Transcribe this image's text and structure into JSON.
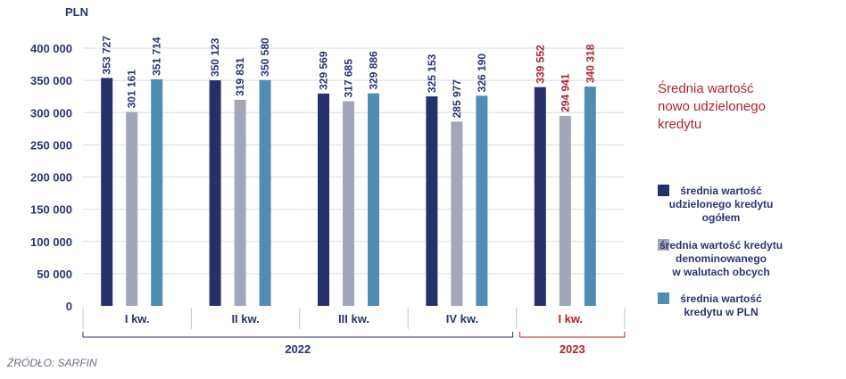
{
  "chart_data": {
    "type": "bar",
    "unit_label": "PLN",
    "ylim": [
      0,
      400000
    ],
    "yticks": [
      "0",
      "50 000",
      "100 000",
      "150 000",
      "200 000",
      "250 000",
      "300 000",
      "350 000",
      "400 000"
    ],
    "grid": true,
    "categories": [
      "I kw.",
      "II kw.",
      "III kw.",
      "IV kw.",
      "I kw."
    ],
    "years": [
      {
        "label": "2022",
        "span": [
          0,
          3
        ],
        "color": "#2a3572"
      },
      {
        "label": "2023",
        "span": [
          4,
          4
        ],
        "color": "#b0252b"
      }
    ],
    "series": [
      {
        "name": "średnia wartość udzielonego kredytu ogółem",
        "color": "#26306b",
        "values": [
          353727,
          350123,
          329569,
          325153,
          339552
        ]
      },
      {
        "name": "średnia wartość kredytu denominowanego w walutach obcych",
        "color": "#a3a6b9",
        "values": [
          301161,
          319831,
          317685,
          285977,
          294941
        ]
      },
      {
        "name": "średnia wartość kredytu w PLN",
        "color": "#4f8db3",
        "values": [
          351714,
          350580,
          329886,
          326190,
          340318
        ]
      }
    ],
    "data_labels": [
      [
        "353 727",
        "350 123",
        "329 569",
        "325 153",
        "339 552"
      ],
      [
        "301 161",
        "319 831",
        "317 685",
        "285 977",
        "294 941"
      ],
      [
        "351 714",
        "350 580",
        "329 886",
        "326 190",
        "340 318"
      ]
    ],
    "label_colors": [
      "#2a3572",
      "#2a3572",
      "#2a3572",
      "#2a3572",
      "#b0252b"
    ],
    "title": "Średnia wartość nowo udzielonego kredytu",
    "title_color": "#b0252b",
    "legend_position": "right",
    "source": "ŹRÓDŁO: SARFIN"
  }
}
